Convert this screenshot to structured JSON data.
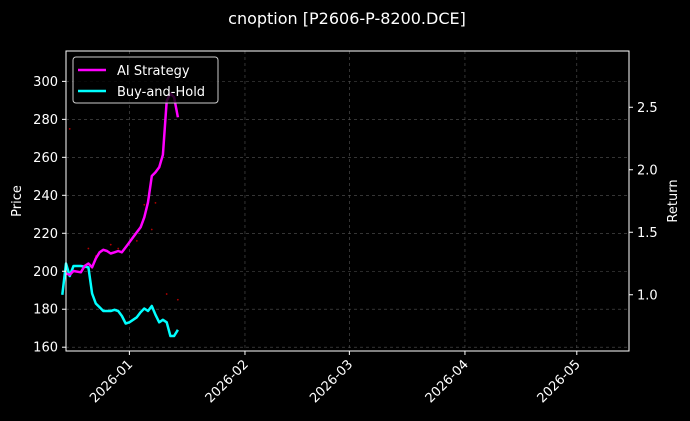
{
  "chart_data": {
    "type": "line",
    "title": "cnoption [P2606-P-8200.DCE]",
    "xlabel": "",
    "ylabel": "Price",
    "y2label": "Return",
    "x_ticks": [
      "2026-01",
      "2026-02",
      "2026-03",
      "2026-04",
      "2026-05"
    ],
    "xlim": [
      "2025-12-15",
      "2026-05-15"
    ],
    "ylim": [
      158,
      316
    ],
    "y_ticks": [
      160,
      180,
      200,
      220,
      240,
      260,
      280,
      300
    ],
    "y2lim": [
      0.55,
      2.95
    ],
    "y2_ticks": [
      1.0,
      1.5,
      2.0,
      2.5
    ],
    "grid": true,
    "legend_position": "top-left",
    "background": "#000000",
    "price_points": {
      "color": "#ff0000",
      "x": [
        "2025-12-16",
        "2025-12-21",
        "2025-12-23",
        "2025-12-27",
        "2025-12-29",
        "2026-01-03",
        "2026-01-05",
        "2026-01-07",
        "2026-01-08",
        "2026-01-11",
        "2026-01-14"
      ],
      "y": [
        275,
        212,
        208,
        214,
        212,
        216,
        235,
        222,
        236,
        188,
        185
      ]
    },
    "series": [
      {
        "name": "AI Strategy",
        "color": "#ff00ff",
        "axis": "right",
        "x": [
          "2025-12-15",
          "2025-12-16",
          "2025-12-17",
          "2025-12-19",
          "2025-12-20",
          "2025-12-21",
          "2025-12-22",
          "2025-12-23",
          "2025-12-24",
          "2025-12-25",
          "2025-12-26",
          "2025-12-27",
          "2025-12-28",
          "2025-12-29",
          "2025-12-30",
          "2025-12-31",
          "2026-01-01",
          "2026-01-02",
          "2026-01-03",
          "2026-01-04",
          "2026-01-05",
          "2026-01-06",
          "2026-01-07",
          "2026-01-08",
          "2026-01-09",
          "2026-01-10",
          "2026-01-11",
          "2026-01-12",
          "2026-01-13",
          "2026-01-14"
        ],
        "values": [
          1.17,
          1.16,
          1.19,
          1.18,
          1.23,
          1.25,
          1.22,
          1.29,
          1.34,
          1.36,
          1.35,
          1.33,
          1.34,
          1.35,
          1.34,
          1.38,
          1.42,
          1.46,
          1.5,
          1.54,
          1.62,
          1.74,
          1.95,
          1.98,
          2.02,
          2.12,
          2.55,
          2.61,
          2.58,
          2.42
        ]
      },
      {
        "name": "Buy-and-Hold",
        "color": "#00ffff",
        "axis": "right",
        "x": [
          "2025-12-14",
          "2025-12-15",
          "2025-12-16",
          "2025-12-17",
          "2025-12-19",
          "2025-12-21",
          "2025-12-22",
          "2025-12-23",
          "2025-12-24",
          "2025-12-25",
          "2025-12-26",
          "2025-12-27",
          "2025-12-28",
          "2025-12-29",
          "2025-12-30",
          "2025-12-31",
          "2026-01-01",
          "2026-01-02",
          "2026-01-03",
          "2026-01-04",
          "2026-01-05",
          "2026-01-06",
          "2026-01-07",
          "2026-01-08",
          "2026-01-09",
          "2026-01-10",
          "2026-01-11",
          "2026-01-12",
          "2026-01-13",
          "2026-01-14"
        ],
        "values": [
          1.0,
          1.25,
          1.15,
          1.23,
          1.23,
          1.22,
          1.01,
          0.93,
          0.9,
          0.87,
          0.87,
          0.87,
          0.88,
          0.87,
          0.83,
          0.77,
          0.78,
          0.8,
          0.82,
          0.86,
          0.89,
          0.87,
          0.91,
          0.84,
          0.78,
          0.8,
          0.78,
          0.67,
          0.67,
          0.72
        ]
      }
    ]
  }
}
